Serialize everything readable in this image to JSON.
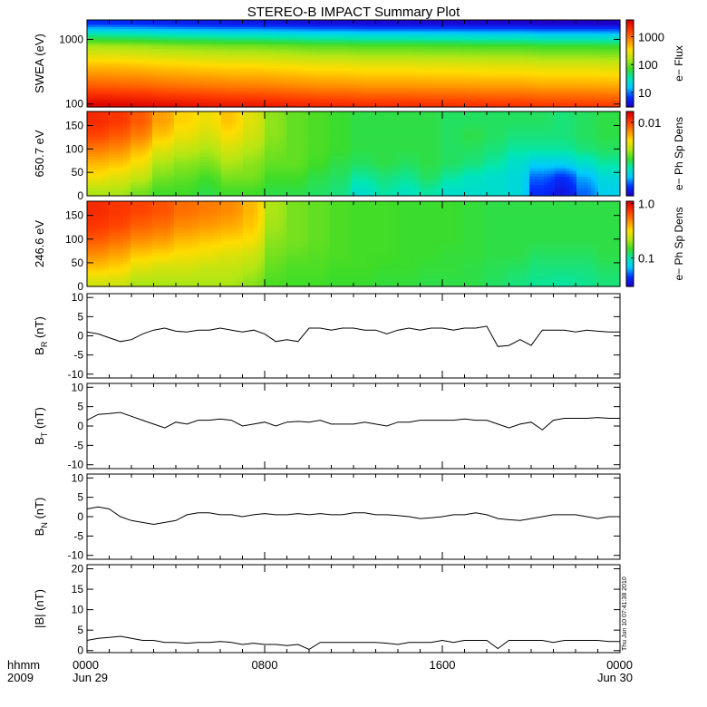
{
  "title": "STEREO-B IMPACT Summary Plot",
  "time_axis": {
    "row1_label": "hhmm",
    "row2_label": "2009",
    "ticks": [
      {
        "time": "0000",
        "date": "Jun 29",
        "hour": 0
      },
      {
        "time": "0800",
        "date": "",
        "hour": 8
      },
      {
        "time": "1600",
        "date": "",
        "hour": 16
      },
      {
        "time": "0000",
        "date": "Jun 30",
        "hour": 24
      }
    ],
    "range_hours": [
      0,
      24
    ]
  },
  "timestamp": "Thu Jun 10 07:41:38 2010",
  "colors": {
    "background": "#ffffff",
    "axes": "#000000",
    "trace": "#000000",
    "colormap": [
      "#1e00c8",
      "#0030ff",
      "#00c8ff",
      "#00e6b4",
      "#3cdc28",
      "#b4e614",
      "#ffdc00",
      "#ff8c00",
      "#ff3c00",
      "#dc0000"
    ]
  },
  "chart_data": [
    {
      "type": "heatmap",
      "ylabel": "SWEA (eV)",
      "yscale": "log",
      "ylim": [
        90,
        2000
      ],
      "yticks": [
        "1000",
        "100"
      ],
      "colorbar": {
        "label": "e− Flux",
        "scale": "log",
        "ticks": [
          "1000",
          "100",
          "10"
        ],
        "range": [
          3,
          4000
        ]
      },
      "energy_profile": [
        {
          "energy_eV": 100,
          "flux": 3000
        },
        {
          "energy_eV": 200,
          "flux": 1000
        },
        {
          "energy_eV": 400,
          "flux": 400
        },
        {
          "energy_eV": 800,
          "flux": 120
        },
        {
          "energy_eV": 1200,
          "flux": 30
        },
        {
          "energy_eV": 1800,
          "flux": 5
        }
      ],
      "hourly_flux_factor": [
        1.25,
        1.2,
        1.15,
        1.05,
        1.0,
        0.95,
        0.9,
        0.9,
        0.85,
        0.8,
        0.75,
        0.75,
        0.7,
        0.7,
        0.7,
        0.68,
        0.68,
        0.66,
        0.65,
        0.65,
        0.6,
        0.6,
        0.6,
        0.58
      ]
    },
    {
      "type": "heatmap",
      "ylabel": "650.7 eV",
      "ylim": [
        0,
        180
      ],
      "yticks": [
        "150",
        "100",
        "50",
        "0"
      ],
      "colorbar": {
        "label": "e− Ph Sp Dens",
        "scale": "linear",
        "ticks": [
          "0.01"
        ],
        "range": [
          0.0,
          0.0115
        ]
      },
      "pitch_angles_deg": [
        10,
        40,
        70,
        100,
        130,
        160
      ],
      "hourly_level_by_pitch_angle": [
        [
          0.55,
          0.65,
          0.72,
          0.8,
          0.88,
          0.92
        ],
        [
          0.55,
          0.62,
          0.7,
          0.78,
          0.85,
          0.9
        ],
        [
          0.5,
          0.58,
          0.65,
          0.72,
          0.8,
          0.85
        ],
        [
          0.45,
          0.5,
          0.55,
          0.62,
          0.7,
          0.75
        ],
        [
          0.45,
          0.48,
          0.52,
          0.58,
          0.64,
          0.68
        ],
        [
          0.42,
          0.45,
          0.5,
          0.55,
          0.6,
          0.64
        ],
        [
          0.45,
          0.5,
          0.55,
          0.6,
          0.66,
          0.7
        ],
        [
          0.45,
          0.5,
          0.52,
          0.56,
          0.6,
          0.62
        ],
        [
          0.42,
          0.45,
          0.48,
          0.5,
          0.52,
          0.52
        ],
        [
          0.42,
          0.45,
          0.48,
          0.48,
          0.48,
          0.48
        ],
        [
          0.4,
          0.42,
          0.45,
          0.46,
          0.46,
          0.46
        ],
        [
          0.38,
          0.4,
          0.42,
          0.44,
          0.44,
          0.44
        ],
        [
          0.3,
          0.35,
          0.4,
          0.42,
          0.42,
          0.42
        ],
        [
          0.35,
          0.38,
          0.42,
          0.42,
          0.42,
          0.42
        ],
        [
          0.32,
          0.36,
          0.4,
          0.42,
          0.42,
          0.42
        ],
        [
          0.35,
          0.4,
          0.42,
          0.42,
          0.42,
          0.42
        ],
        [
          0.3,
          0.35,
          0.4,
          0.4,
          0.4,
          0.4
        ],
        [
          0.3,
          0.32,
          0.38,
          0.4,
          0.42,
          0.4
        ],
        [
          0.3,
          0.3,
          0.35,
          0.38,
          0.4,
          0.4
        ],
        [
          0.28,
          0.28,
          0.3,
          0.35,
          0.38,
          0.4
        ],
        [
          0.1,
          0.15,
          0.25,
          0.35,
          0.38,
          0.4
        ],
        [
          0.05,
          0.1,
          0.25,
          0.35,
          0.38,
          0.38
        ],
        [
          0.15,
          0.2,
          0.3,
          0.38,
          0.4,
          0.4
        ],
        [
          0.25,
          0.28,
          0.35,
          0.4,
          0.42,
          0.42
        ]
      ]
    },
    {
      "type": "heatmap",
      "ylabel": "246.6 eV",
      "ylim": [
        0,
        180
      ],
      "yticks": [
        "150",
        "100",
        "50",
        "0"
      ],
      "colorbar": {
        "label": "e− Ph Sp Dens",
        "scale": "log",
        "ticks": [
          "1.0",
          "0.1"
        ],
        "range": [
          0.03,
          1.1
        ]
      },
      "pitch_angles_deg": [
        10,
        40,
        70,
        100,
        130,
        160
      ],
      "hourly_level_by_pitch_angle": [
        [
          0.6,
          0.7,
          0.78,
          0.85,
          0.9,
          0.92
        ],
        [
          0.6,
          0.68,
          0.75,
          0.82,
          0.88,
          0.9
        ],
        [
          0.55,
          0.62,
          0.7,
          0.78,
          0.84,
          0.88
        ],
        [
          0.55,
          0.6,
          0.68,
          0.76,
          0.82,
          0.86
        ],
        [
          0.55,
          0.6,
          0.66,
          0.72,
          0.78,
          0.82
        ],
        [
          0.55,
          0.58,
          0.64,
          0.7,
          0.76,
          0.8
        ],
        [
          0.55,
          0.58,
          0.62,
          0.68,
          0.74,
          0.78
        ],
        [
          0.52,
          0.56,
          0.6,
          0.66,
          0.7,
          0.72
        ],
        [
          0.46,
          0.48,
          0.5,
          0.52,
          0.54,
          0.55
        ],
        [
          0.45,
          0.46,
          0.48,
          0.5,
          0.5,
          0.5
        ],
        [
          0.45,
          0.46,
          0.47,
          0.48,
          0.48,
          0.48
        ],
        [
          0.44,
          0.45,
          0.46,
          0.46,
          0.46,
          0.46
        ],
        [
          0.44,
          0.45,
          0.45,
          0.45,
          0.45,
          0.45
        ],
        [
          0.43,
          0.44,
          0.45,
          0.45,
          0.45,
          0.45
        ],
        [
          0.43,
          0.44,
          0.44,
          0.44,
          0.44,
          0.44
        ],
        [
          0.42,
          0.43,
          0.44,
          0.44,
          0.44,
          0.44
        ],
        [
          0.42,
          0.43,
          0.43,
          0.44,
          0.44,
          0.44
        ],
        [
          0.42,
          0.42,
          0.43,
          0.43,
          0.43,
          0.43
        ],
        [
          0.4,
          0.41,
          0.42,
          0.42,
          0.42,
          0.42
        ],
        [
          0.38,
          0.4,
          0.42,
          0.42,
          0.42,
          0.42
        ],
        [
          0.36,
          0.38,
          0.4,
          0.42,
          0.42,
          0.42
        ],
        [
          0.35,
          0.38,
          0.4,
          0.42,
          0.42,
          0.42
        ],
        [
          0.36,
          0.38,
          0.4,
          0.42,
          0.42,
          0.42
        ],
        [
          0.38,
          0.4,
          0.42,
          0.42,
          0.42,
          0.42
        ]
      ]
    },
    {
      "type": "line",
      "ylabel_symbol": "B",
      "ylabel_sub": "R",
      "ylabel_unit": "(nT)",
      "ylim": [
        -11,
        11
      ],
      "yticks": [
        "10",
        "5",
        "0",
        "-5",
        "-10"
      ],
      "x_hours": [
        0,
        0.5,
        1,
        1.5,
        2,
        2.5,
        3,
        3.5,
        4,
        4.5,
        5,
        5.5,
        6,
        6.5,
        7,
        7.5,
        8,
        8.5,
        9,
        9.5,
        10,
        10.5,
        11,
        11.5,
        12,
        12.5,
        13,
        13.5,
        14,
        14.5,
        15,
        15.5,
        16,
        16.5,
        17,
        17.5,
        18,
        18.5,
        19,
        19.5,
        20,
        20.5,
        21,
        21.5,
        22,
        22.5,
        23,
        23.5,
        24
      ],
      "values": [
        1.0,
        0.5,
        -0.5,
        -1.5,
        -1.0,
        0.5,
        1.5,
        2.0,
        1.2,
        1.0,
        1.5,
        1.5,
        2.0,
        1.5,
        1.0,
        1.5,
        0.5,
        -1.5,
        -1.0,
        -1.5,
        2.0,
        2.0,
        1.5,
        2.0,
        2.0,
        1.5,
        1.5,
        0.5,
        1.5,
        2.0,
        1.5,
        2.0,
        2.0,
        1.5,
        2.0,
        2.0,
        2.5,
        -2.8,
        -2.5,
        -1.0,
        -2.5,
        1.5,
        1.5,
        1.5,
        1.0,
        1.5,
        1.2,
        1.0,
        1.0
      ]
    },
    {
      "type": "line",
      "ylabel_symbol": "B",
      "ylabel_sub": "T",
      "ylabel_unit": "(nT)",
      "ylim": [
        -11,
        11
      ],
      "yticks": [
        "10",
        "5",
        "0",
        "-5",
        "-10"
      ],
      "x_hours": [
        0,
        0.5,
        1,
        1.5,
        2,
        2.5,
        3,
        3.5,
        4,
        4.5,
        5,
        5.5,
        6,
        6.5,
        7,
        7.5,
        8,
        8.5,
        9,
        9.5,
        10,
        10.5,
        11,
        11.5,
        12,
        12.5,
        13,
        13.5,
        14,
        14.5,
        15,
        15.5,
        16,
        16.5,
        17,
        17.5,
        18,
        18.5,
        19,
        19.5,
        20,
        20.5,
        21,
        21.5,
        22,
        22.5,
        23,
        23.5,
        24
      ],
      "values": [
        1.5,
        3.0,
        3.2,
        3.5,
        2.5,
        1.5,
        0.5,
        -0.5,
        1.0,
        0.5,
        1.5,
        1.5,
        1.8,
        1.5,
        0.0,
        0.5,
        1.0,
        0.0,
        1.0,
        1.2,
        1.0,
        1.5,
        0.5,
        0.5,
        0.5,
        1.0,
        0.5,
        0.0,
        1.0,
        1.0,
        1.5,
        1.5,
        1.5,
        1.5,
        1.8,
        1.5,
        1.5,
        0.5,
        -0.5,
        0.5,
        1.0,
        -1.0,
        1.5,
        2.0,
        2.0,
        2.0,
        2.2,
        2.0,
        2.0
      ]
    },
    {
      "type": "line",
      "ylabel_symbol": "B",
      "ylabel_sub": "N",
      "ylabel_unit": "(nT)",
      "ylim": [
        -11,
        11
      ],
      "yticks": [
        "10",
        "5",
        "0",
        "-5",
        "-10"
      ],
      "x_hours": [
        0,
        0.5,
        1,
        1.5,
        2,
        2.5,
        3,
        3.5,
        4,
        4.5,
        5,
        5.5,
        6,
        6.5,
        7,
        7.5,
        8,
        8.5,
        9,
        9.5,
        10,
        10.5,
        11,
        11.5,
        12,
        12.5,
        13,
        13.5,
        14,
        14.5,
        15,
        15.5,
        16,
        16.5,
        17,
        17.5,
        18,
        18.5,
        19,
        19.5,
        20,
        20.5,
        21,
        21.5,
        22,
        22.5,
        23,
        23.5,
        24
      ],
      "values": [
        2.0,
        2.5,
        2.0,
        0.0,
        -1.0,
        -1.5,
        -2.0,
        -1.5,
        -1.0,
        0.5,
        1.0,
        1.0,
        0.5,
        0.5,
        0.0,
        0.5,
        0.8,
        0.5,
        0.5,
        0.8,
        0.5,
        0.8,
        0.5,
        0.5,
        1.0,
        1.0,
        0.5,
        0.5,
        0.3,
        0.0,
        -0.5,
        -0.3,
        0.0,
        0.5,
        0.5,
        1.0,
        0.5,
        -0.5,
        -0.8,
        -1.0,
        -0.5,
        0.0,
        0.5,
        0.5,
        0.5,
        0.0,
        -0.5,
        0.0,
        0.0
      ]
    },
    {
      "type": "line",
      "ylabel": "|B| (nT)",
      "ylim": [
        -0.5,
        21
      ],
      "yticks": [
        "20",
        "15",
        "10",
        "5",
        "0"
      ],
      "x_hours": [
        0,
        0.5,
        1,
        1.5,
        2,
        2.5,
        3,
        3.5,
        4,
        4.5,
        5,
        5.5,
        6,
        6.5,
        7,
        7.5,
        8,
        8.5,
        9,
        9.5,
        10,
        10.5,
        11,
        11.5,
        12,
        12.5,
        13,
        13.5,
        14,
        14.5,
        15,
        15.5,
        16,
        16.5,
        17,
        17.5,
        18,
        18.5,
        19,
        19.5,
        20,
        20.5,
        21,
        21.5,
        22,
        22.5,
        23,
        23.5,
        24
      ],
      "values": [
        2.5,
        3.0,
        3.2,
        3.5,
        3.0,
        2.5,
        2.5,
        2.0,
        2.0,
        1.8,
        2.0,
        2.0,
        2.2,
        2.0,
        1.5,
        1.8,
        1.5,
        1.5,
        1.2,
        1.5,
        0.3,
        2.0,
        2.0,
        2.0,
        2.0,
        2.0,
        2.0,
        1.8,
        1.5,
        2.0,
        2.0,
        2.0,
        2.5,
        2.0,
        2.5,
        2.5,
        2.5,
        0.5,
        2.5,
        2.5,
        2.5,
        2.5,
        2.0,
        2.5,
        2.5,
        2.5,
        2.5,
        2.2,
        2.2
      ]
    }
  ]
}
